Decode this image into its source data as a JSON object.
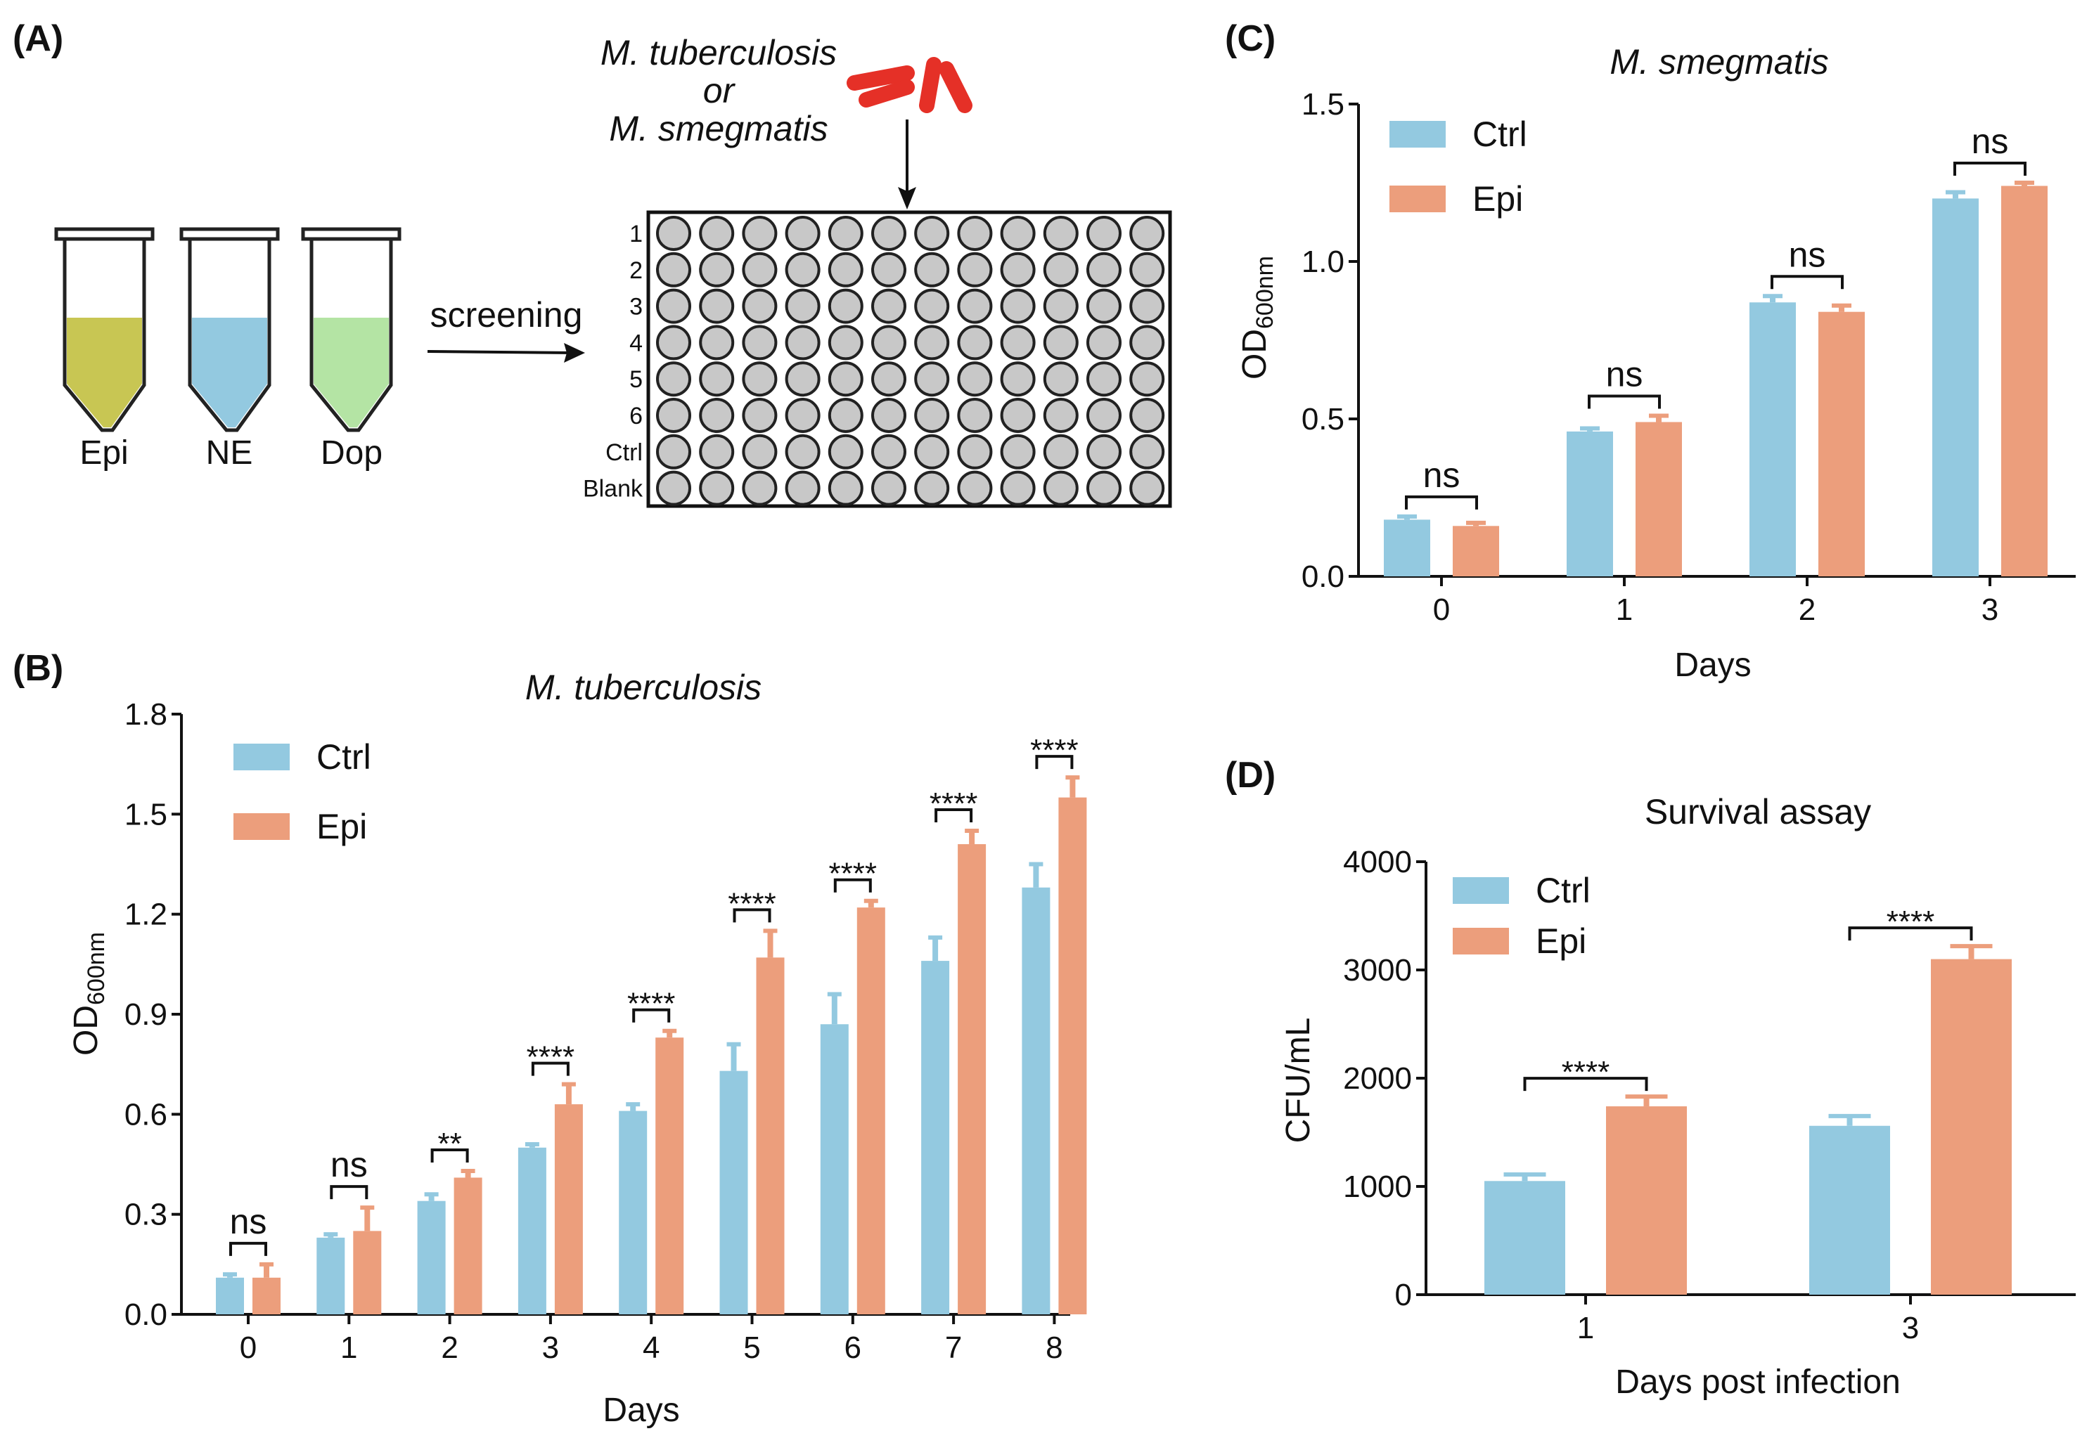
{
  "colors": {
    "ctrl": "#93c9e0",
    "epi": "#ec9e7c",
    "epi_tube": "#c8c653",
    "ne_tube": "#93c9e0",
    "dop_tube": "#b4e4a4",
    "well": "#c8c8c8",
    "bacteria": "#e53027"
  },
  "panelA": {
    "label": "(A)",
    "bacteria_line1": "M. tuberculosis",
    "bacteria_line2": "or",
    "bacteria_line3": "M. smegmatis",
    "screening": "screening",
    "tubes": [
      "Epi",
      "NE",
      "Dop"
    ],
    "rows": [
      "1",
      "2",
      "3",
      "4",
      "5",
      "6",
      "Ctrl",
      "Blank"
    ],
    "columns": 12
  },
  "chart_data": [
    {
      "id": "B",
      "panel_label": "(B)",
      "type": "bar",
      "title": "M. tuberculosis",
      "xlabel": "Days",
      "ylabel": "OD",
      "ylabel_sub": "600nm",
      "categories": [
        "0",
        "1",
        "2",
        "3",
        "4",
        "5",
        "6",
        "7",
        "8"
      ],
      "ylim": [
        0,
        1.8
      ],
      "yticks": [
        "0.0",
        "0.3",
        "0.6",
        "0.9",
        "1.2",
        "1.5",
        "1.8"
      ],
      "legend": [
        "Ctrl",
        "Epi"
      ],
      "legend_position": "top-left",
      "series": [
        {
          "name": "Ctrl",
          "values": [
            0.11,
            0.23,
            0.34,
            0.5,
            0.61,
            0.73,
            0.87,
            1.06,
            1.28
          ],
          "errors": [
            0.01,
            0.01,
            0.02,
            0.01,
            0.02,
            0.08,
            0.09,
            0.07,
            0.07
          ]
        },
        {
          "name": "Epi",
          "values": [
            0.11,
            0.25,
            0.41,
            0.63,
            0.83,
            1.07,
            1.22,
            1.41,
            1.55
          ],
          "errors": [
            0.04,
            0.07,
            0.02,
            0.06,
            0.02,
            0.08,
            0.02,
            0.04,
            0.06
          ]
        }
      ],
      "significance": [
        "ns",
        "ns",
        "**",
        "****",
        "****",
        "****",
        "****",
        "****",
        "****"
      ]
    },
    {
      "id": "C",
      "panel_label": "(C)",
      "type": "bar",
      "title": "M. smegmatis",
      "xlabel": "Days",
      "ylabel": "OD",
      "ylabel_sub": "600nm",
      "categories": [
        "0",
        "1",
        "2",
        "3"
      ],
      "ylim": [
        0,
        1.5
      ],
      "yticks": [
        "0.0",
        "0.5",
        "1.0",
        "1.5"
      ],
      "legend": [
        "Ctrl",
        "Epi"
      ],
      "legend_position": "top-left",
      "series": [
        {
          "name": "Ctrl",
          "values": [
            0.18,
            0.46,
            0.87,
            1.2
          ],
          "errors": [
            0.01,
            0.01,
            0.02,
            0.02
          ]
        },
        {
          "name": "Epi",
          "values": [
            0.16,
            0.49,
            0.84,
            1.24
          ],
          "errors": [
            0.01,
            0.02,
            0.02,
            0.01
          ]
        }
      ],
      "significance": [
        "ns",
        "ns",
        "ns",
        "ns"
      ]
    },
    {
      "id": "D",
      "panel_label": "(D)",
      "type": "bar",
      "title": "Survival assay",
      "xlabel": "Days post infection",
      "ylabel": "CFU/mL",
      "ylabel_sub": "",
      "categories": [
        "1",
        "3"
      ],
      "ylim": [
        0,
        4000
      ],
      "yticks": [
        "0",
        "1000",
        "2000",
        "3000",
        "4000"
      ],
      "legend": [
        "Ctrl",
        "Epi"
      ],
      "legend_position": "top-left",
      "series": [
        {
          "name": "Ctrl",
          "values": [
            1050,
            1560
          ],
          "errors": [
            60,
            90
          ]
        },
        {
          "name": "Epi",
          "values": [
            1740,
            3100
          ],
          "errors": [
            90,
            120
          ]
        }
      ],
      "significance": [
        "****",
        "****"
      ]
    }
  ]
}
